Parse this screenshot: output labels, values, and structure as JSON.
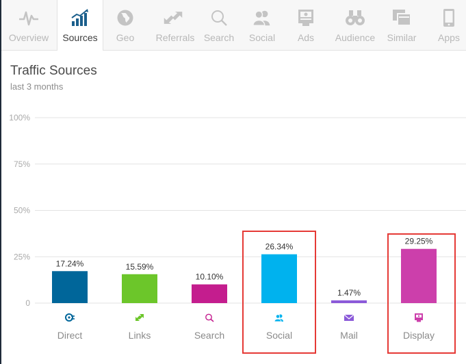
{
  "tabs": [
    {
      "label": "Overview",
      "icon": "pulse-icon",
      "active": false
    },
    {
      "label": "Sources",
      "icon": "bar-chart-icon",
      "active": true
    },
    {
      "label": "Geo",
      "icon": "globe-icon",
      "active": false
    },
    {
      "label": "Referrals",
      "icon": "arrows-icon",
      "active": false
    },
    {
      "label": "Search",
      "icon": "search-icon",
      "active": false
    },
    {
      "label": "Social",
      "icon": "people-icon",
      "active": false
    },
    {
      "label": "Ads",
      "icon": "ads-icon",
      "active": false
    },
    {
      "label": "Audience",
      "icon": "binoculars-icon",
      "active": false
    },
    {
      "label": "Similar",
      "icon": "similar-icon",
      "active": false
    },
    {
      "label": "Apps",
      "icon": "phone-icon",
      "active": false
    }
  ],
  "panel": {
    "title": "Traffic Sources",
    "subtitle": "last 3 months"
  },
  "colors": {
    "direct": "#00669a",
    "links": "#6cc62a",
    "search": "#c41d8e",
    "social": "#00b2ee",
    "mail": "#8b5ad9",
    "display": "#cc3fab",
    "highlight": "#e53935"
  },
  "chart_data": {
    "type": "bar",
    "categories": [
      "Direct",
      "Links",
      "Search",
      "Social",
      "Mail",
      "Display"
    ],
    "icons": [
      "direct-icon",
      "links-icon",
      "search-icon",
      "social-icon",
      "mail-icon",
      "display-icon"
    ],
    "values": [
      17.24,
      15.59,
      10.1,
      26.34,
      1.47,
      29.25
    ],
    "value_labels": [
      "17.24%",
      "15.59%",
      "10.10%",
      "26.34%",
      "1.47%",
      "29.25%"
    ],
    "yticks": [
      0,
      25,
      50,
      75,
      100
    ],
    "ytick_labels": [
      "0",
      "25%",
      "50%",
      "75%",
      "100%"
    ],
    "ylim": [
      0,
      100
    ],
    "grid": true,
    "highlighted": [
      "Social",
      "Display"
    ]
  }
}
